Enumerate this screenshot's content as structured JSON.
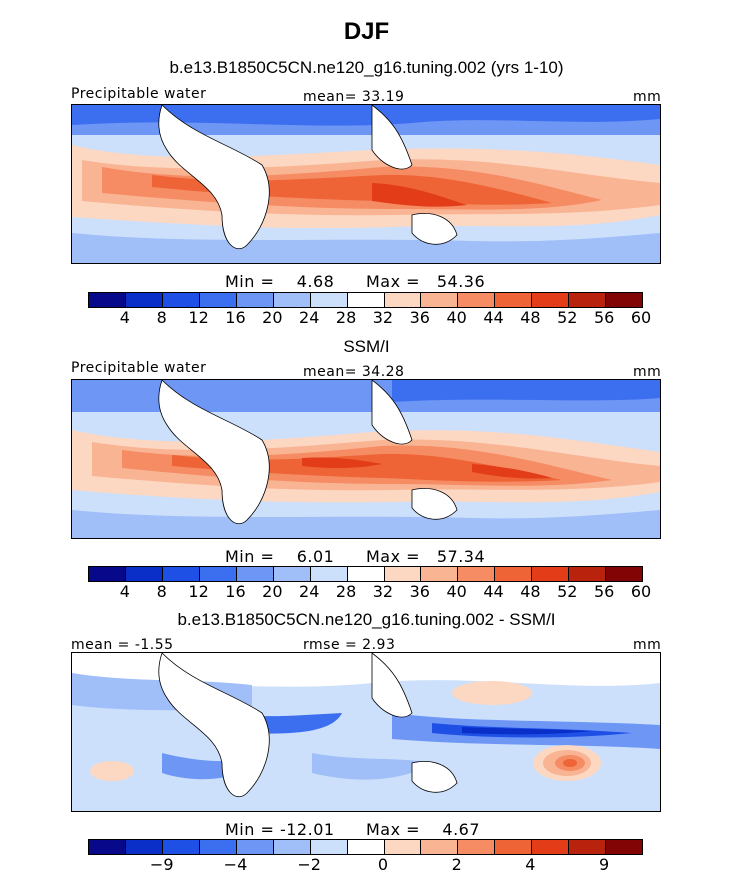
{
  "figure": {
    "title": "DJF"
  },
  "panels": [
    {
      "subtitle": "b.e13.B1850C5CN.ne120_g16.tuning.002 (yrs 1-10)",
      "left_label": "Precipitable water",
      "center_label": "mean=  33.19",
      "right_label": "mm",
      "min_label": "Min =    4.68",
      "max_label": "Max =   54.36",
      "colorbar_ticks": [
        "4",
        "8",
        "12",
        "16",
        "20",
        "24",
        "28",
        "32",
        "36",
        "40",
        "44",
        "48",
        "52",
        "56",
        "60"
      ],
      "colorbar_colors": [
        "#08088a",
        "#0a2ec8",
        "#1e50e6",
        "#3c6ef0",
        "#6e96f5",
        "#a0bef8",
        "#cce0fb",
        "#ffffff",
        "#fcd7c2",
        "#f9b494",
        "#f58c64",
        "#ee6436",
        "#e23c18",
        "#b9220c",
        "#820404"
      ]
    },
    {
      "subtitle": "SSM/I",
      "left_label": "Precipitable water",
      "center_label": "mean=  34.28",
      "right_label": "mm",
      "min_label": "Min =    6.01",
      "max_label": "Max =   57.34",
      "colorbar_ticks": [
        "4",
        "8",
        "12",
        "16",
        "20",
        "24",
        "28",
        "32",
        "36",
        "40",
        "44",
        "48",
        "52",
        "56",
        "60"
      ],
      "colorbar_colors": [
        "#08088a",
        "#0a2ec8",
        "#1e50e6",
        "#3c6ef0",
        "#6e96f5",
        "#a0bef8",
        "#cce0fb",
        "#ffffff",
        "#fcd7c2",
        "#f9b494",
        "#f58c64",
        "#ee6436",
        "#e23c18",
        "#b9220c",
        "#820404"
      ]
    },
    {
      "subtitle": "b.e13.B1850C5CN.ne120_g16.tuning.002 - SSM/I",
      "left_label": "mean =  -1.55",
      "center_label": "rmse =    2.93",
      "right_label": "mm",
      "min_label": "Min = -12.01",
      "max_label": "Max =    4.67",
      "colorbar_ticks": [
        "-9",
        "-4",
        "-2",
        "0",
        "2",
        "4",
        "9"
      ],
      "colorbar_colors": [
        "#08088a",
        "#0a2ec8",
        "#1e50e6",
        "#3c6ef0",
        "#6e96f5",
        "#a0bef8",
        "#cce0fb",
        "#ffffff",
        "#fcd7c2",
        "#f9b494",
        "#f58c64",
        "#ee6436",
        "#e23c18",
        "#b9220c",
        "#820404"
      ]
    }
  ]
}
